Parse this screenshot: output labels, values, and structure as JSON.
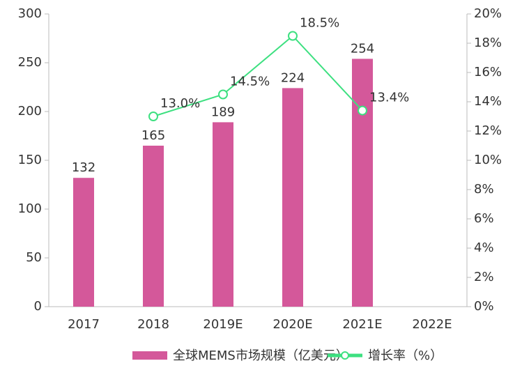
{
  "chart_data": {
    "type": "bar",
    "categories": [
      "2017",
      "2018",
      "2019E",
      "2020E",
      "2021E",
      "2022E"
    ],
    "series": [
      {
        "name": "全球MEMS市场规模（亿美元）",
        "color": "#d4589a",
        "values": [
          132,
          165,
          189,
          224,
          254,
          null
        ]
      },
      {
        "name": "增长率（%）",
        "color": "#3de080",
        "axis": "y2",
        "values": [
          null,
          13.0,
          14.5,
          18.5,
          13.4,
          null
        ],
        "value_labels": [
          null,
          "13.0%",
          "14.5%",
          "18.5%",
          "13.4%",
          null
        ]
      }
    ],
    "ylim": [
      0,
      300
    ],
    "yticks": [
      0,
      50,
      100,
      150,
      200,
      250,
      300
    ],
    "y2lim": [
      0,
      20
    ],
    "y2ticks": [
      {
        "value": 0,
        "label": "0%"
      },
      {
        "value": 2,
        "label": "2%"
      },
      {
        "value": 4,
        "label": "4%"
      },
      {
        "value": 6,
        "label": "6%"
      },
      {
        "value": 8,
        "label": "8%"
      },
      {
        "value": 10,
        "label": "10%"
      },
      {
        "value": 12,
        "label": "12%"
      },
      {
        "value": 14,
        "label": "14%"
      },
      {
        "value": 16,
        "label": "16%"
      },
      {
        "value": 18,
        "label": "18%"
      },
      {
        "value": 20,
        "label": "20%"
      }
    ],
    "legend": "bottom"
  }
}
